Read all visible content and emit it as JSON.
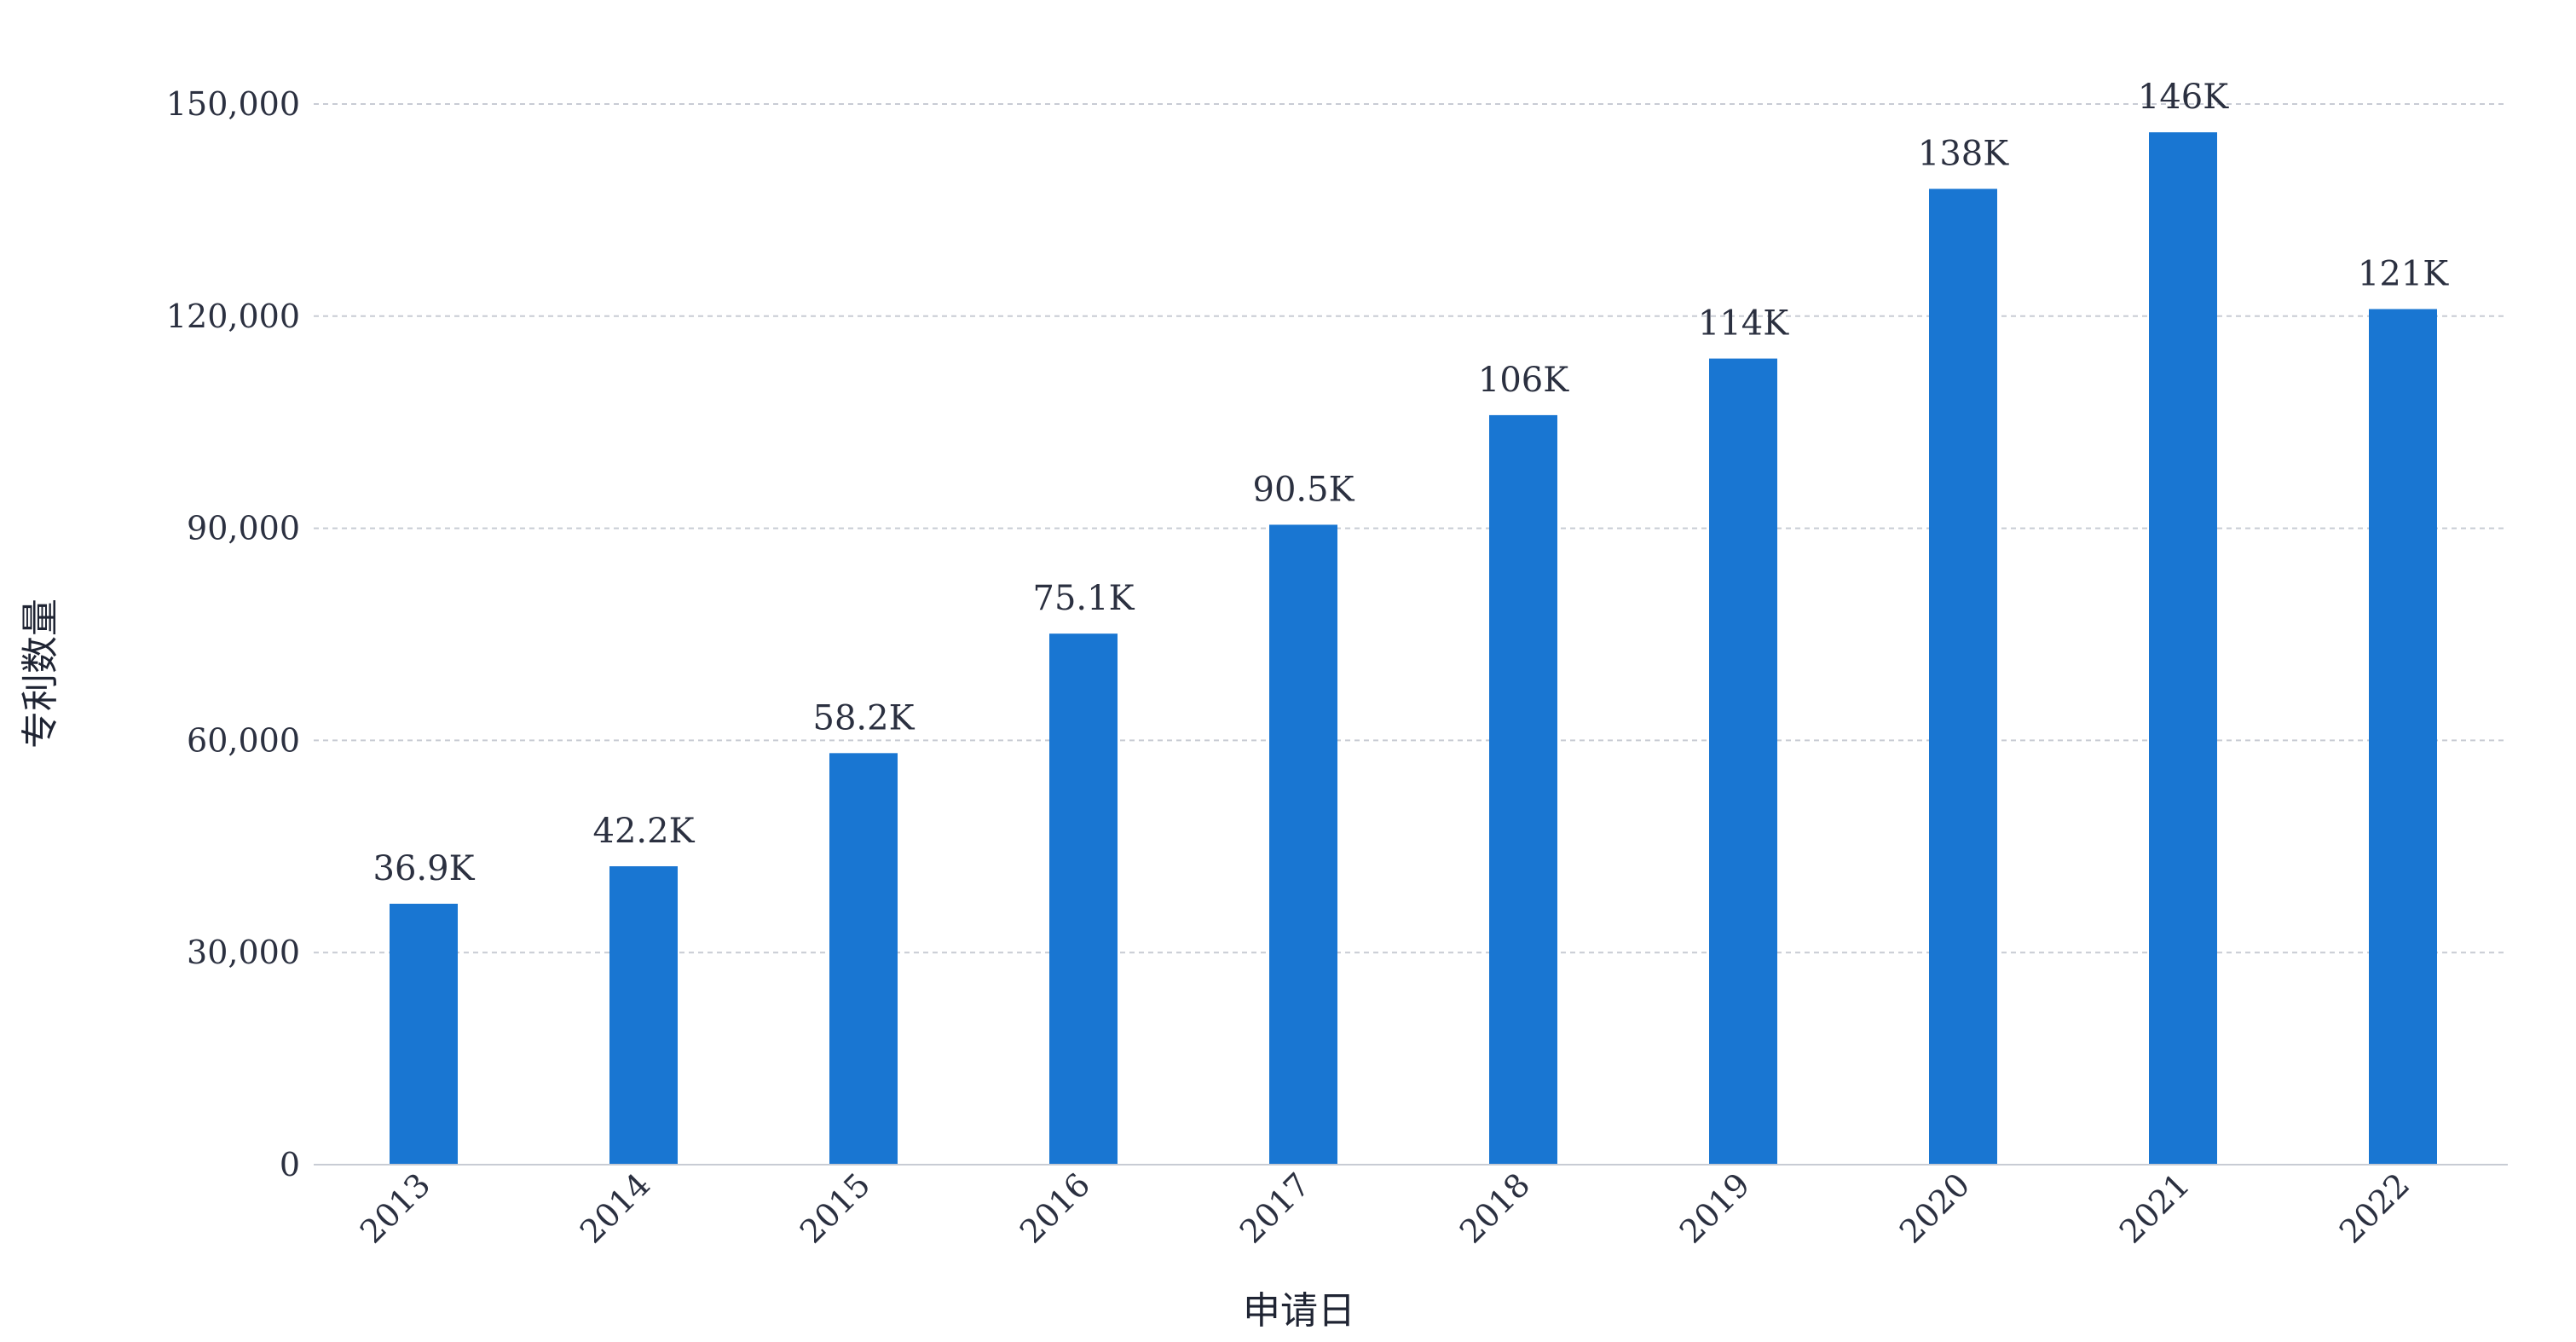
{
  "chart_data": {
    "type": "bar",
    "title": "",
    "xlabel": "申请日",
    "ylabel": "专利数量",
    "categories": [
      "2013",
      "2014",
      "2015",
      "2016",
      "2017",
      "2018",
      "2019",
      "2020",
      "2021",
      "2022"
    ],
    "values": [
      36900,
      42200,
      58200,
      75100,
      90500,
      106000,
      114000,
      138000,
      146000,
      121000
    ],
    "data_labels": [
      "36.9K",
      "42.2K",
      "58.2K",
      "75.1K",
      "90.5K",
      "106K",
      "114K",
      "138K",
      "146K",
      "121K"
    ],
    "ylim": [
      0,
      150000
    ],
    "yticks": [
      0,
      30000,
      60000,
      90000,
      120000,
      150000
    ],
    "ytick_labels": [
      "0",
      "30,000",
      "60,000",
      "90,000",
      "120,000",
      "150,000"
    ],
    "grid": "horizontal dashed",
    "bar_color": "#1976d2",
    "grid_color": "#c8ccd4"
  }
}
